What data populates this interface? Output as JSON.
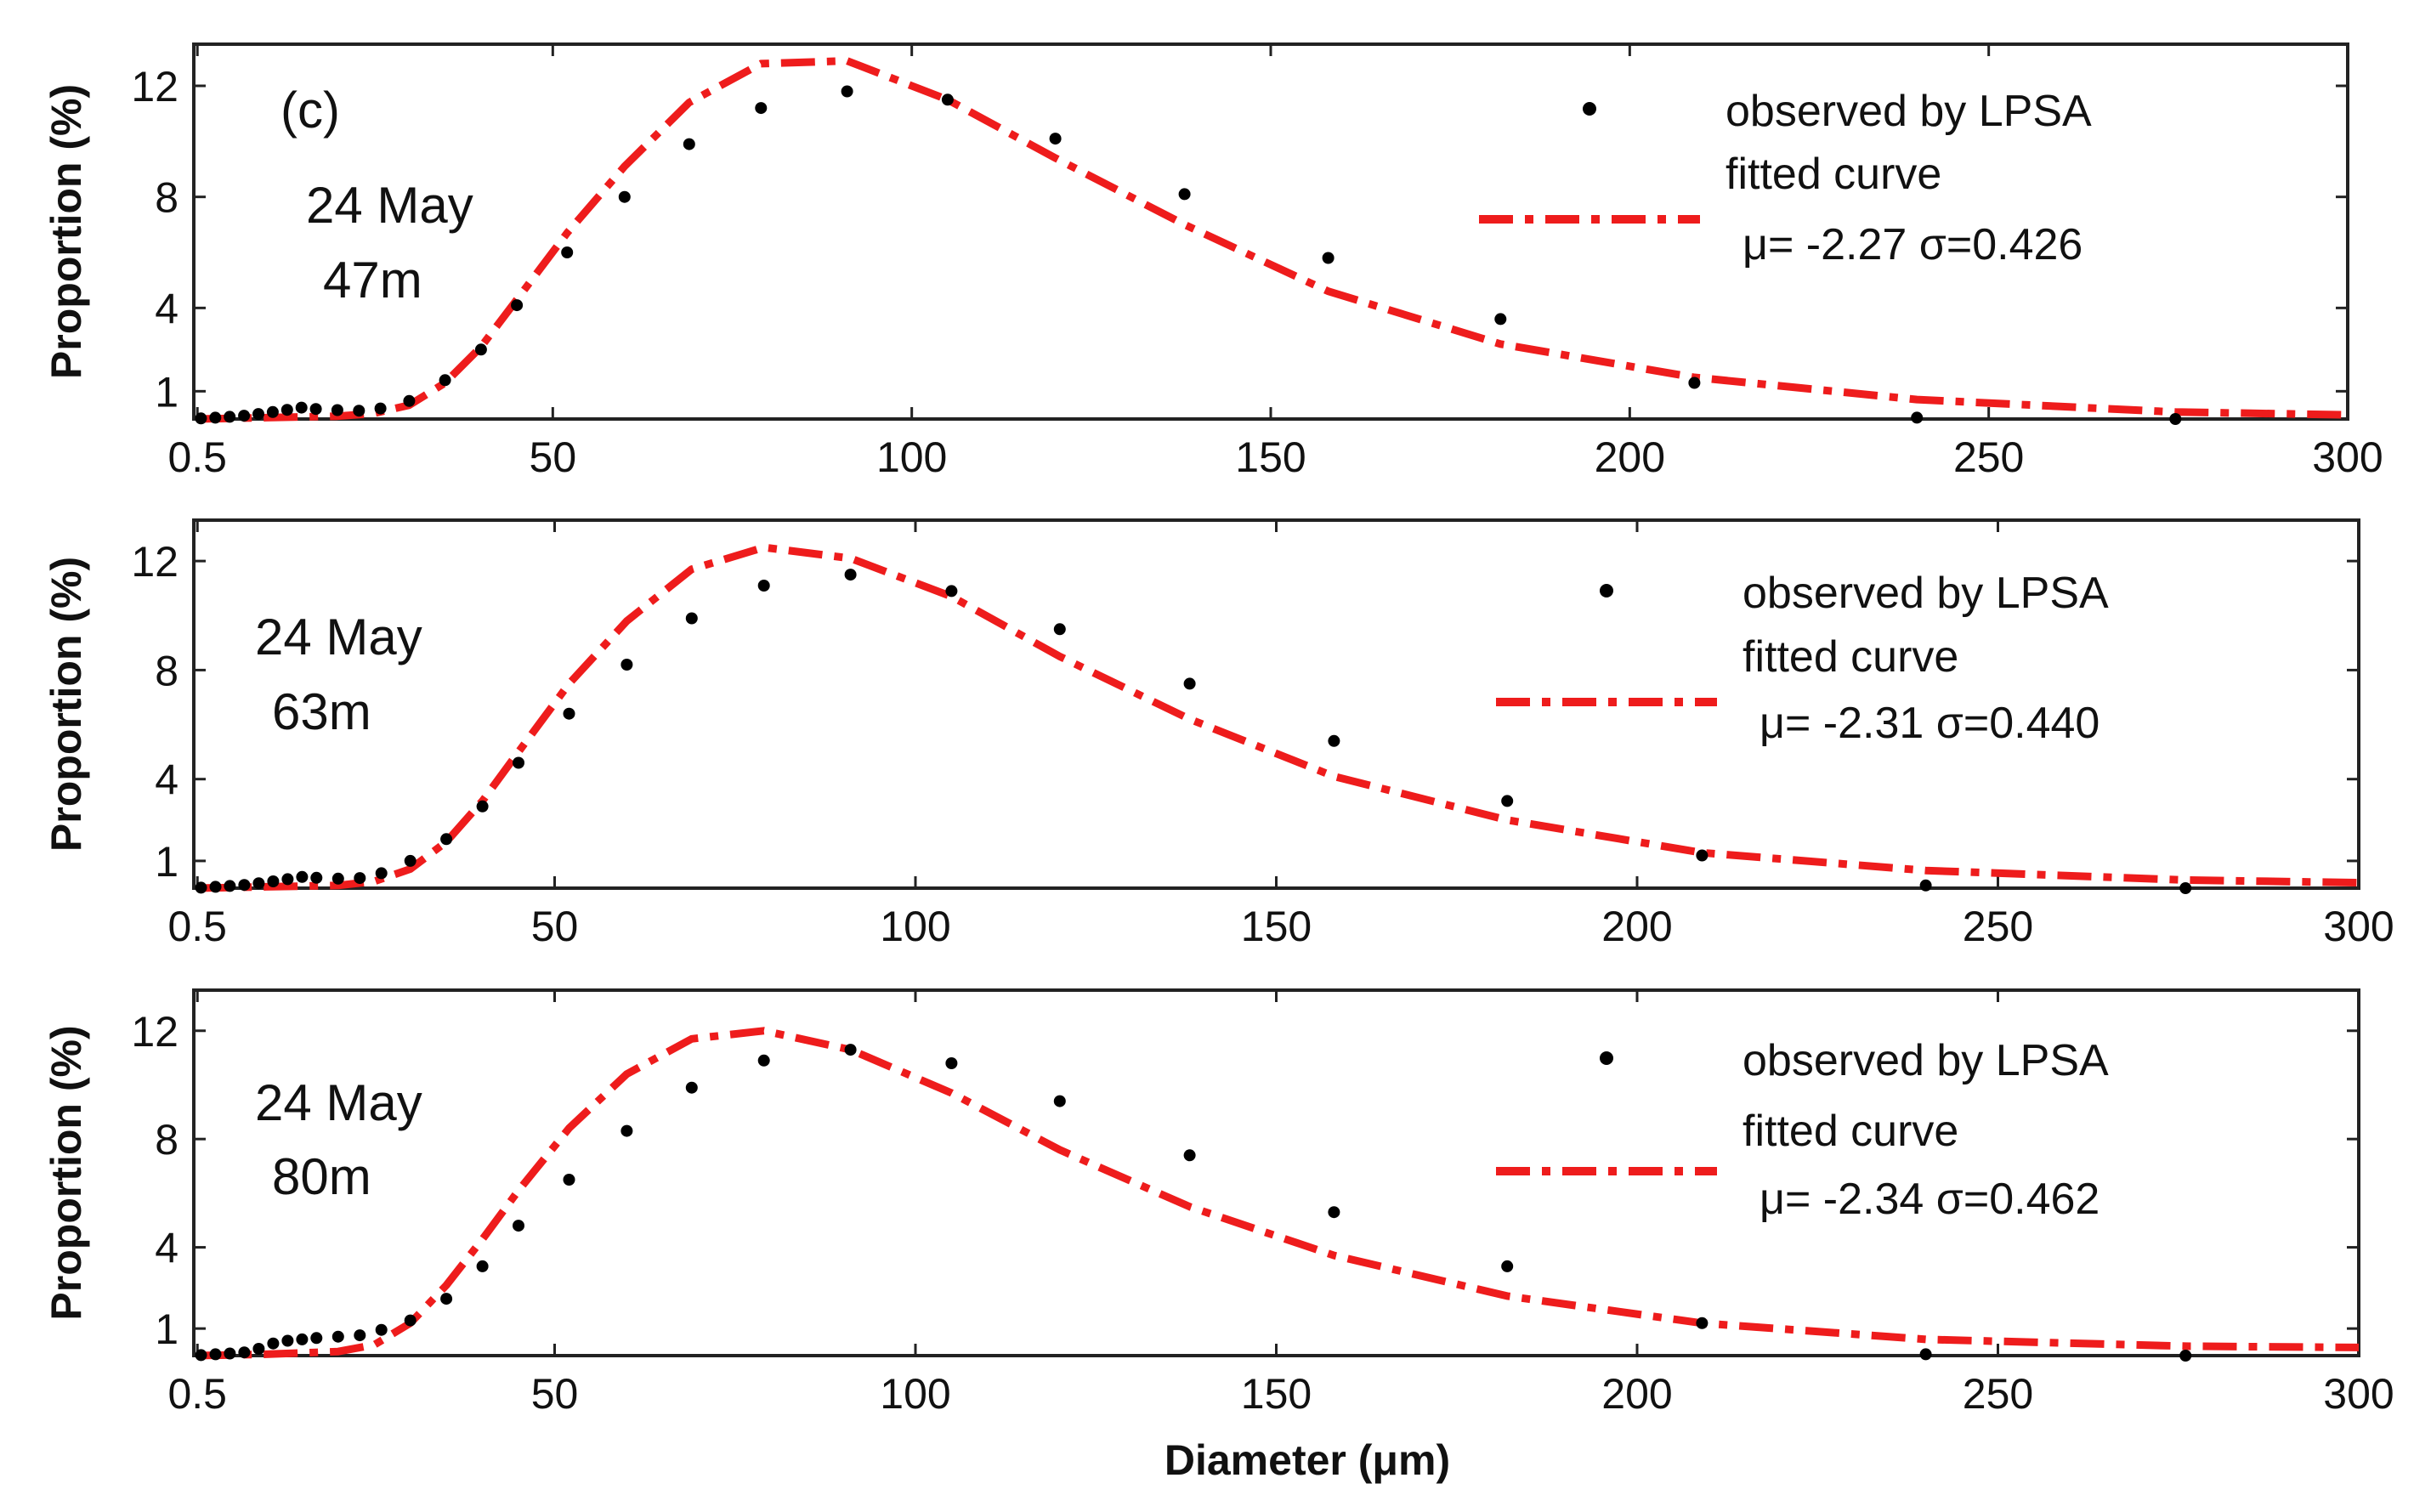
{
  "figure_label": "(c)",
  "xlabel": "Diameter (μm)",
  "colors": {
    "observed": "#000000",
    "fitted": "#ee1c1c",
    "axes": "#222222"
  },
  "chart_data": [
    {
      "type": "line",
      "panel": "top",
      "date_label": "24 May",
      "depth_label": "47m",
      "ylabel": "Proportion (%)",
      "xlim": [
        0,
        300
      ],
      "ylim": [
        0,
        13.5
      ],
      "x_ticks": [
        0.5,
        50,
        100,
        150,
        200,
        250,
        300
      ],
      "x_tick_labels": [
        "0.5",
        "50",
        "100",
        "150",
        "200",
        "250",
        "300"
      ],
      "y_ticks": [
        1,
        4,
        8,
        12
      ],
      "y_tick_labels": [
        "1",
        "4",
        "8",
        "12"
      ],
      "legend": {
        "observed_label": "observed by LPSA",
        "fitted_label": "fitted curve",
        "params": "μ= -2.27  σ=0.426",
        "position": "top-right"
      },
      "series": [
        {
          "name": "observed by LPSA",
          "kind": "scatter",
          "x": [
            1,
            3,
            5,
            7,
            9,
            11,
            13,
            15,
            17,
            20,
            23,
            26,
            30,
            35,
            40,
            45,
            52,
            60,
            69,
            79,
            91,
            105,
            120,
            138,
            158,
            182,
            209,
            240,
            276
          ],
          "y": [
            0.02,
            0.05,
            0.08,
            0.12,
            0.18,
            0.25,
            0.33,
            0.41,
            0.36,
            0.32,
            0.3,
            0.38,
            0.65,
            1.4,
            2.5,
            4.1,
            6.0,
            8.0,
            9.9,
            11.2,
            11.8,
            11.5,
            10.1,
            8.1,
            5.8,
            3.6,
            1.3,
            0.05,
            0.0
          ]
        },
        {
          "name": "fitted curve",
          "kind": "line",
          "x": [
            0.5,
            10,
            20,
            25,
            30,
            35,
            40,
            45,
            52,
            60,
            69,
            79,
            91,
            105,
            120,
            138,
            158,
            182,
            209,
            240,
            276,
            300
          ],
          "y": [
            0.0,
            0.05,
            0.1,
            0.2,
            0.5,
            1.3,
            2.6,
            4.3,
            6.7,
            9.1,
            11.4,
            12.8,
            12.9,
            11.5,
            9.4,
            7.0,
            4.6,
            2.7,
            1.5,
            0.7,
            0.25,
            0.15
          ]
        }
      ]
    },
    {
      "type": "line",
      "panel": "middle",
      "date_label": "24 May",
      "depth_label": "63m",
      "ylabel": "Proportion (%)",
      "xlim": [
        0,
        300
      ],
      "ylim": [
        0,
        13.5
      ],
      "x_ticks": [
        0.5,
        50,
        100,
        150,
        200,
        250,
        300
      ],
      "x_tick_labels": [
        "0.5",
        "50",
        "100",
        "150",
        "200",
        "250",
        "300"
      ],
      "y_ticks": [
        1,
        4,
        8,
        12
      ],
      "y_tick_labels": [
        "1",
        "4",
        "8",
        "12"
      ],
      "legend": {
        "observed_label": "observed by LPSA",
        "fitted_label": "fitted curve",
        "params": "μ= -2.31  σ=0.440",
        "position": "top-right"
      },
      "series": [
        {
          "name": "observed by LPSA",
          "kind": "scatter",
          "x": [
            1,
            3,
            5,
            7,
            9,
            11,
            13,
            15,
            17,
            20,
            23,
            26,
            30,
            35,
            40,
            45,
            52,
            60,
            69,
            79,
            91,
            105,
            120,
            138,
            158,
            182,
            209,
            240,
            276
          ],
          "y": [
            0.02,
            0.05,
            0.08,
            0.12,
            0.18,
            0.25,
            0.33,
            0.41,
            0.38,
            0.35,
            0.37,
            0.55,
            1.0,
            1.8,
            3.0,
            4.6,
            6.4,
            8.2,
            9.9,
            11.1,
            11.5,
            10.9,
            9.5,
            7.5,
            5.4,
            3.2,
            1.2,
            0.1,
            0.0
          ]
        },
        {
          "name": "fitted curve",
          "kind": "line",
          "x": [
            0.5,
            10,
            20,
            25,
            30,
            35,
            40,
            45,
            52,
            60,
            69,
            79,
            91,
            105,
            120,
            138,
            158,
            182,
            209,
            240,
            276,
            300
          ],
          "y": [
            0.0,
            0.05,
            0.1,
            0.25,
            0.7,
            1.7,
            3.2,
            5.0,
            7.5,
            9.8,
            11.7,
            12.5,
            12.1,
            10.7,
            8.5,
            6.2,
            4.1,
            2.5,
            1.3,
            0.65,
            0.3,
            0.2
          ]
        }
      ]
    },
    {
      "type": "line",
      "panel": "bottom",
      "date_label": "24 May",
      "depth_label": "80m",
      "ylabel": "Proportion (%)",
      "xlim": [
        0,
        300
      ],
      "ylim": [
        0,
        13.5
      ],
      "x_ticks": [
        0.5,
        50,
        100,
        150,
        200,
        250,
        300
      ],
      "x_tick_labels": [
        "0.5",
        "50",
        "100",
        "150",
        "200",
        "250",
        "300"
      ],
      "y_ticks": [
        1,
        4,
        8,
        12
      ],
      "y_tick_labels": [
        "1",
        "4",
        "8",
        "12"
      ],
      "legend": {
        "observed_label": "observed by LPSA",
        "fitted_label": "fitted curve",
        "params": "μ= -2.34  σ=0.462",
        "position": "top-right"
      },
      "series": [
        {
          "name": "observed by LPSA",
          "kind": "scatter",
          "x": [
            1,
            3,
            5,
            7,
            9,
            11,
            13,
            15,
            17,
            20,
            23,
            26,
            30,
            35,
            40,
            45,
            52,
            60,
            69,
            79,
            91,
            105,
            120,
            138,
            158,
            182,
            209,
            240,
            276
          ],
          "y": [
            0.02,
            0.05,
            0.08,
            0.12,
            0.25,
            0.45,
            0.55,
            0.6,
            0.65,
            0.7,
            0.75,
            0.95,
            1.3,
            2.1,
            3.3,
            4.8,
            6.5,
            8.3,
            9.9,
            10.9,
            11.3,
            10.8,
            9.4,
            7.4,
            5.3,
            3.3,
            1.2,
            0.05,
            0.0
          ]
        },
        {
          "name": "fitted curve",
          "kind": "line",
          "x": [
            0.5,
            10,
            20,
            25,
            30,
            35,
            40,
            45,
            52,
            60,
            69,
            79,
            91,
            105,
            120,
            138,
            158,
            182,
            209,
            240,
            276,
            300
          ],
          "y": [
            0.0,
            0.05,
            0.15,
            0.4,
            1.2,
            2.6,
            4.3,
            6.1,
            8.4,
            10.4,
            11.7,
            12.0,
            11.3,
            9.7,
            7.6,
            5.5,
            3.7,
            2.2,
            1.2,
            0.6,
            0.35,
            0.3
          ]
        }
      ]
    }
  ]
}
